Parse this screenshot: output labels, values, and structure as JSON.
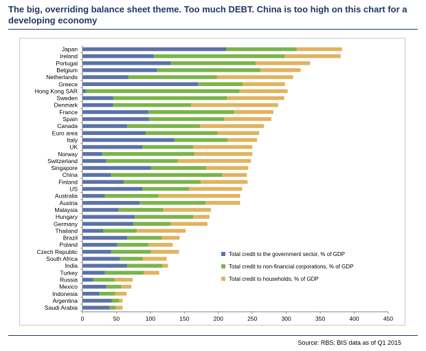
{
  "title": "The big, overriding balance sheet theme. Too much DEBT. China is too high on this chart for a developing economy",
  "source": "Source:  RBS; BIS data as of Q1 2015",
  "colors": {
    "government": "#5b72a8",
    "nonfinancial": "#7bb44a",
    "households": "#e0b35e",
    "title": "#1f3864"
  },
  "chart_data": {
    "type": "bar",
    "orientation": "horizontal",
    "stacked": true,
    "categories": [
      "Japan",
      "Ireland",
      "Portugal",
      "Belgium",
      "Netherlands",
      "Greece",
      "Hong Kong SAR",
      "Sweden",
      "Denmark",
      "France",
      "Spain",
      "Canada",
      "Euro area",
      "Italy",
      "UK",
      "Norway",
      "Switzerland",
      "Singapore",
      "China",
      "Finland",
      "US",
      "Australia",
      "Austria",
      "Malaysia",
      "Hungary",
      "Germany",
      "Thailand",
      "Brazil",
      "Poland",
      "Czech Republic",
      "South Africa",
      "India",
      "Turkey",
      "Russia",
      "Mexico",
      "Indonesia",
      "Argentina",
      "Saudi Arabia"
    ],
    "series": [
      {
        "name": "Total credit to the government sector, % of GDP",
        "color": "#5b72a8",
        "values": [
          212,
          105,
          130,
          110,
          68,
          170,
          5,
          45,
          45,
          97,
          98,
          66,
          93,
          135,
          88,
          29,
          35,
          101,
          42,
          61,
          88,
          33,
          84,
          53,
          77,
          75,
          31,
          66,
          51,
          42,
          55,
          66,
          33,
          16,
          35,
          25,
          43,
          40
        ]
      },
      {
        "name": "Total credit to non-financial corporations, % of GDP",
        "color": "#7bb44a",
        "values": [
          103,
          193,
          125,
          152,
          130,
          66,
          226,
          168,
          115,
          126,
          111,
          107,
          106,
          79,
          75,
          136,
          105,
          81,
          164,
          113,
          69,
          79,
          97,
          66,
          86,
          55,
          49,
          51,
          46,
          59,
          34,
          52,
          57,
          31,
          22,
          23,
          11,
          9
        ]
      },
      {
        "name": "Total credit to households, % of GDP",
        "color": "#e0b35e",
        "values": [
          67,
          82,
          80,
          59,
          112,
          62,
          71,
          84,
          128,
          58,
          69,
          94,
          61,
          43,
          87,
          85,
          108,
          62,
          36,
          69,
          78,
          120,
          51,
          70,
          24,
          54,
          72,
          26,
          36,
          41,
          35,
          8,
          23,
          27,
          15,
          17,
          5,
          10
        ]
      }
    ],
    "xlim": [
      0,
      450
    ],
    "xticks": [
      0,
      50,
      100,
      150,
      200,
      250,
      300,
      350,
      400,
      450
    ],
    "grid": false,
    "legend_position": "lower-right inside plot"
  }
}
